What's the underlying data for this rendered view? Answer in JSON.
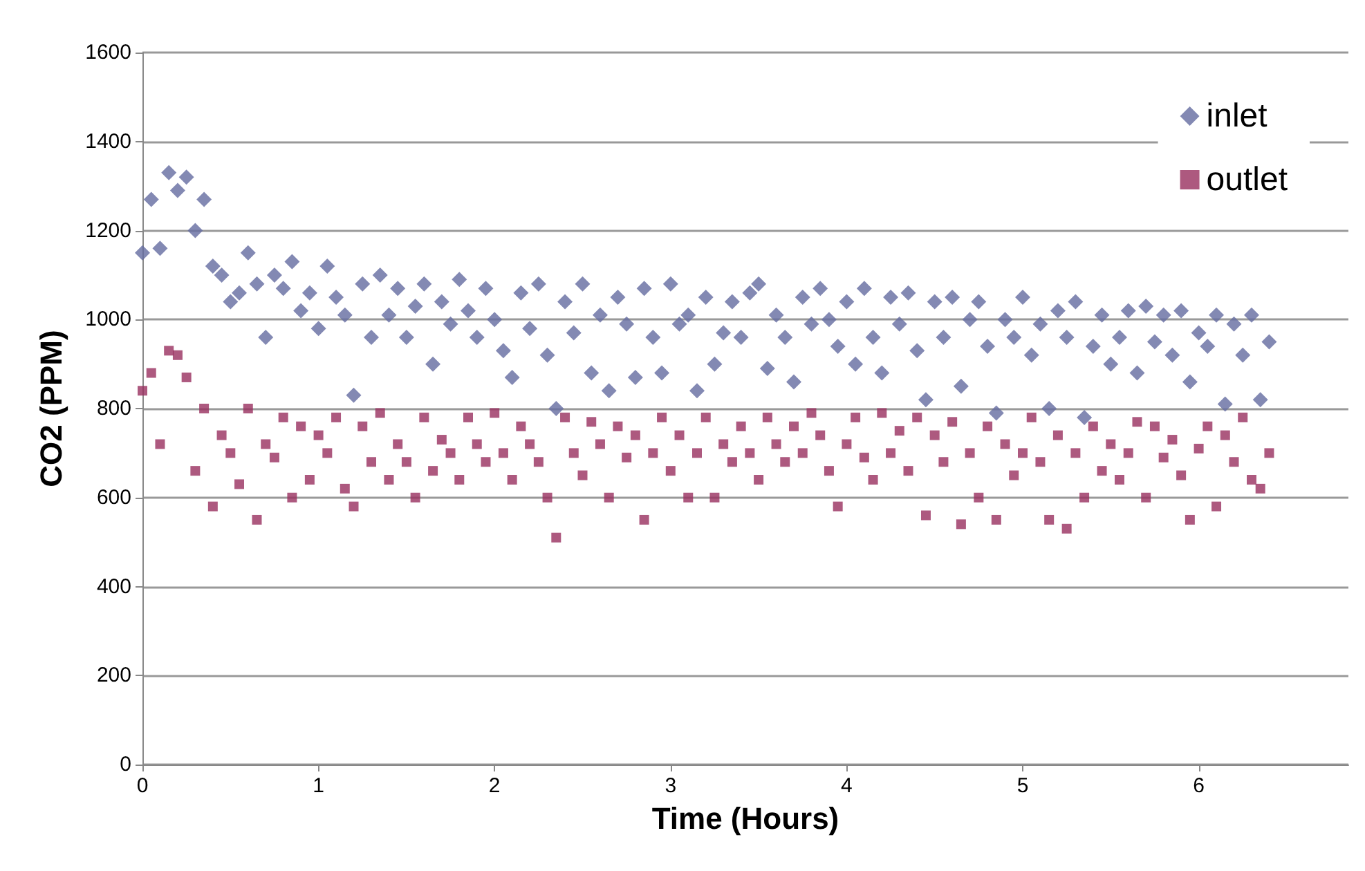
{
  "chart_data": {
    "type": "scatter",
    "xlabel": "Time (Hours)",
    "ylabel": "CO2 (PPM)",
    "xlim": [
      0,
      6.85
    ],
    "xticks": [
      0,
      1,
      2,
      3,
      4,
      5,
      6
    ],
    "ylim": [
      0,
      1600
    ],
    "yticks": [
      0,
      200,
      400,
      600,
      800,
      1000,
      1200,
      1400,
      1600
    ],
    "grid": "y",
    "legend": "top right",
    "series": [
      {
        "name": "inlet",
        "color": "#646ca0",
        "marker": "diamond",
        "x": [
          0,
          0.05,
          0.1,
          0.15,
          0.2,
          0.25,
          0.3,
          0.35,
          0.4,
          0.45,
          0.5,
          0.55,
          0.6,
          0.65,
          0.7,
          0.75,
          0.8,
          0.85,
          0.9,
          0.95,
          1,
          1.05,
          1.1,
          1.15,
          1.2,
          1.25,
          1.3,
          1.35,
          1.4,
          1.45,
          1.5,
          1.55,
          1.6,
          1.65,
          1.7,
          1.75,
          1.8,
          1.85,
          1.9,
          1.95,
          2,
          2.05,
          2.1,
          2.15,
          2.2,
          2.25,
          2.3,
          2.35,
          2.4,
          2.45,
          2.5,
          2.55,
          2.6,
          2.65,
          2.7,
          2.75,
          2.8,
          2.85,
          2.9,
          2.95,
          3,
          3.05,
          3.1,
          3.15,
          3.2,
          3.25,
          3.3,
          3.35,
          3.4,
          3.45,
          3.5,
          3.55,
          3.6,
          3.65,
          3.7,
          3.75,
          3.8,
          3.85,
          3.9,
          3.95,
          4,
          4.05,
          4.1,
          4.15,
          4.2,
          4.25,
          4.3,
          4.35,
          4.4,
          4.45,
          4.5,
          4.55,
          4.6,
          4.65,
          4.7,
          4.75,
          4.8,
          4.85,
          4.9,
          4.95,
          5,
          5.05,
          5.1,
          5.15,
          5.2,
          5.25,
          5.3,
          5.35,
          5.4,
          5.45,
          5.5,
          5.55,
          5.6,
          5.65,
          5.7,
          5.75,
          5.8,
          5.85,
          5.9,
          5.95,
          6,
          6.05,
          6.1,
          6.15,
          6.2,
          6.25,
          6.3,
          6.35,
          6.4
        ],
        "values": [
          1150,
          1270,
          1160,
          1330,
          1290,
          1320,
          1200,
          1270,
          1120,
          1100,
          1040,
          1060,
          1150,
          1080,
          960,
          1100,
          1070,
          1130,
          1020,
          1060,
          980,
          1120,
          1050,
          1010,
          830,
          1080,
          960,
          1100,
          1010,
          1070,
          960,
          1030,
          1080,
          900,
          1040,
          990,
          1090,
          1020,
          960,
          1070,
          1000,
          930,
          870,
          1060,
          980,
          1080,
          920,
          800,
          1040,
          970,
          1080,
          880,
          1010,
          840,
          1050,
          990,
          870,
          1070,
          960,
          880,
          1080,
          990,
          1010,
          840,
          1050,
          900,
          970,
          1040,
          960,
          1060,
          1080,
          890,
          1010,
          960,
          860,
          1050,
          990,
          1070,
          1000,
          940,
          1040,
          900,
          1070,
          960,
          880,
          1050,
          990,
          1060,
          930,
          820,
          1040,
          960,
          1050,
          850,
          1000,
          1040,
          940,
          790,
          1000,
          960,
          1050,
          920,
          990,
          800,
          1020,
          960,
          1040,
          780,
          940,
          1010,
          900,
          960,
          1020,
          880,
          1030,
          950,
          1010,
          920,
          1020,
          860,
          970,
          940,
          1010,
          810,
          990,
          920,
          1010,
          820,
          950
        ]
      },
      {
        "name": "outlet",
        "color": "#99305f",
        "marker": "square",
        "x": [
          0,
          0.05,
          0.1,
          0.15,
          0.2,
          0.25,
          0.3,
          0.35,
          0.4,
          0.45,
          0.5,
          0.55,
          0.6,
          0.65,
          0.7,
          0.75,
          0.8,
          0.85,
          0.9,
          0.95,
          1,
          1.05,
          1.1,
          1.15,
          1.2,
          1.25,
          1.3,
          1.35,
          1.4,
          1.45,
          1.5,
          1.55,
          1.6,
          1.65,
          1.7,
          1.75,
          1.8,
          1.85,
          1.9,
          1.95,
          2,
          2.05,
          2.1,
          2.15,
          2.2,
          2.25,
          2.3,
          2.35,
          2.4,
          2.45,
          2.5,
          2.55,
          2.6,
          2.65,
          2.7,
          2.75,
          2.8,
          2.85,
          2.9,
          2.95,
          3,
          3.05,
          3.1,
          3.15,
          3.2,
          3.25,
          3.3,
          3.35,
          3.4,
          3.45,
          3.5,
          3.55,
          3.6,
          3.65,
          3.7,
          3.75,
          3.8,
          3.85,
          3.9,
          3.95,
          4,
          4.05,
          4.1,
          4.15,
          4.2,
          4.25,
          4.3,
          4.35,
          4.4,
          4.45,
          4.5,
          4.55,
          4.6,
          4.65,
          4.7,
          4.75,
          4.8,
          4.85,
          4.9,
          4.95,
          5,
          5.05,
          5.1,
          5.15,
          5.2,
          5.25,
          5.3,
          5.35,
          5.4,
          5.45,
          5.5,
          5.55,
          5.6,
          5.65,
          5.7,
          5.75,
          5.8,
          5.85,
          5.9,
          5.95,
          6,
          6.05,
          6.1,
          6.15,
          6.2,
          6.25,
          6.3,
          6.35,
          6.4
        ],
        "values": [
          840,
          880,
          720,
          930,
          920,
          870,
          660,
          800,
          580,
          740,
          700,
          630,
          800,
          550,
          720,
          690,
          780,
          600,
          760,
          640,
          740,
          700,
          780,
          620,
          580,
          760,
          680,
          790,
          640,
          720,
          680,
          600,
          780,
          660,
          730,
          700,
          640,
          780,
          720,
          680,
          790,
          700,
          640,
          760,
          720,
          680,
          600,
          510,
          780,
          700,
          650,
          770,
          720,
          600,
          760,
          690,
          740,
          550,
          700,
          780,
          660,
          740,
          600,
          700,
          780,
          600,
          720,
          680,
          760,
          700,
          640,
          780,
          720,
          680,
          760,
          700,
          790,
          740,
          660,
          580,
          720,
          780,
          690,
          640,
          790,
          700,
          750,
          660,
          780,
          560,
          740,
          680,
          770,
          540,
          700,
          600,
          760,
          550,
          720,
          650,
          700,
          780,
          680,
          550,
          740,
          530,
          700,
          600,
          760,
          660,
          720,
          640,
          700,
          770,
          600,
          760,
          690,
          730,
          650,
          550,
          710,
          760,
          580,
          740,
          680,
          780,
          640,
          620,
          700
        ]
      }
    ]
  }
}
